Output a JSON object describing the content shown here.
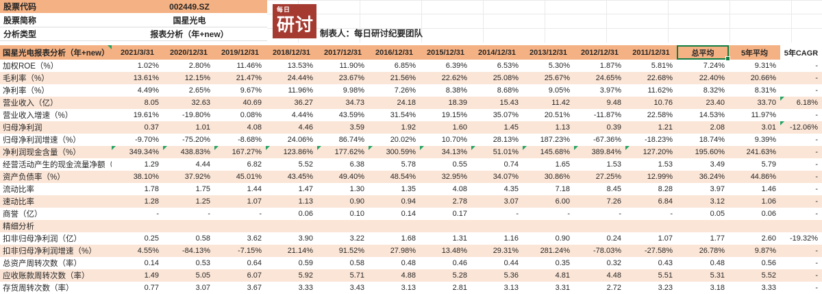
{
  "meta_panel": {
    "rows": [
      {
        "label": "股票代码",
        "value": "002449.SZ"
      },
      {
        "label": "股票简称",
        "value": "国星光电"
      },
      {
        "label": "分析类型",
        "value": "报表分析（年+new）"
      }
    ]
  },
  "logo": {
    "top": "每日",
    "main": "研讨"
  },
  "byline": "制表人：每日研讨纪要团队",
  "table": {
    "title": "国星光电报表分析（年+new）",
    "title_marker": true,
    "columns": [
      "2021/3/31",
      "2020/12/31",
      "2019/12/31",
      "2018/12/31",
      "2017/12/31",
      "2016/12/31",
      "2015/12/31",
      "2014/12/31",
      "2013/12/31",
      "2012/12/31",
      "2011/12/31",
      "总平均",
      "5年平均",
      "5年CAGR"
    ],
    "selected_column": "总平均",
    "plain_columns": [
      "5年CAGR"
    ],
    "rows": [
      {
        "label": "加权ROE（%）",
        "values": [
          "1.02%",
          "2.80%",
          "11.46%",
          "13.53%",
          "11.90%",
          "6.85%",
          "6.39%",
          "6.53%",
          "5.30%",
          "1.87%",
          "5.81%",
          "7.24%",
          "9.31%",
          "-"
        ]
      },
      {
        "label": "毛利率（%）",
        "values": [
          "13.61%",
          "12.15%",
          "21.47%",
          "24.44%",
          "23.67%",
          "21.56%",
          "22.62%",
          "25.08%",
          "25.67%",
          "24.65%",
          "22.68%",
          "22.40%",
          "20.66%",
          "-"
        ]
      },
      {
        "label": "净利率（%）",
        "values": [
          "4.49%",
          "2.65%",
          "9.67%",
          "11.96%",
          "9.98%",
          "7.26%",
          "8.38%",
          "8.68%",
          "9.05%",
          "3.97%",
          "11.62%",
          "8.32%",
          "8.31%",
          "-"
        ]
      },
      {
        "label": "营业收入（亿）",
        "values": [
          "8.05",
          "32.63",
          "40.69",
          "36.27",
          "34.73",
          "24.18",
          "18.39",
          "15.43",
          "11.42",
          "9.48",
          "10.76",
          "23.40",
          "33.70",
          "6.18%"
        ],
        "marker_cols": [
          13
        ]
      },
      {
        "label": "营业收入增速（%）",
        "values": [
          "19.61%",
          "-19.80%",
          "0.08%",
          "4.44%",
          "43.59%",
          "31.54%",
          "19.15%",
          "35.07%",
          "20.51%",
          "-11.87%",
          "22.58%",
          "14.53%",
          "11.97%",
          "-"
        ]
      },
      {
        "label": "归母净利润",
        "values": [
          "0.37",
          "1.01",
          "4.08",
          "4.46",
          "3.59",
          "1.92",
          "1.60",
          "1.45",
          "1.13",
          "0.39",
          "1.21",
          "2.08",
          "3.01",
          "-12.06%"
        ],
        "marker_cols": [
          13
        ]
      },
      {
        "label": "归母净利润增速（%）",
        "values": [
          "-9.70%",
          "-75.20%",
          "-8.68%",
          "24.06%",
          "86.74%",
          "20.02%",
          "10.70%",
          "28.13%",
          "187.23%",
          "-67.36%",
          "-18.23%",
          "18.74%",
          "9.39%",
          "-"
        ]
      },
      {
        "label": "净利润现金含量（%）",
        "values": [
          "349.34%",
          "438.83%",
          "167.27%",
          "123.86%",
          "177.62%",
          "300.59%",
          "34.13%",
          "51.01%",
          "145.68%",
          "389.84%",
          "127.20%",
          "195.60%",
          "241.63%",
          "-"
        ],
        "marker_cols": [
          0,
          1,
          2,
          3,
          4,
          5,
          6,
          7,
          8,
          9,
          10
        ]
      },
      {
        "label": "经营活动产生的现金流量净额（亿）",
        "values": [
          "1.29",
          "4.44",
          "6.82",
          "5.52",
          "6.38",
          "5.78",
          "0.55",
          "0.74",
          "1.65",
          "1.53",
          "1.53",
          "3.49",
          "5.79",
          "-"
        ]
      },
      {
        "label": "资产负债率（%）",
        "values": [
          "38.10%",
          "37.92%",
          "45.01%",
          "43.45%",
          "49.40%",
          "48.54%",
          "32.95%",
          "34.07%",
          "30.86%",
          "27.25%",
          "12.99%",
          "36.24%",
          "44.86%",
          "-"
        ]
      },
      {
        "label": "流动比率",
        "values": [
          "1.78",
          "1.75",
          "1.44",
          "1.47",
          "1.30",
          "1.35",
          "4.08",
          "4.35",
          "7.18",
          "8.45",
          "8.28",
          "3.97",
          "1.46",
          "-"
        ]
      },
      {
        "label": "速动比率",
        "values": [
          "1.28",
          "1.25",
          "1.07",
          "1.13",
          "0.90",
          "0.94",
          "2.78",
          "3.07",
          "6.00",
          "7.26",
          "6.84",
          "3.12",
          "1.06",
          "-"
        ]
      },
      {
        "label": "商誉（亿）",
        "values": [
          "-",
          "-",
          "-",
          "0.06",
          "0.10",
          "0.14",
          "0.17",
          "-",
          "-",
          "-",
          "-",
          "0.05",
          "0.06",
          "-"
        ]
      },
      {
        "label": "精细分析",
        "values": [
          "",
          "",
          "",
          "",
          "",
          "",
          "",
          "",
          "",
          "",
          "",
          "",
          "",
          ""
        ],
        "section": true
      },
      {
        "label": "扣非归母净利润（亿）",
        "values": [
          "0.25",
          "0.58",
          "3.62",
          "3.90",
          "3.22",
          "1.68",
          "1.31",
          "1.16",
          "0.90",
          "0.24",
          "1.07",
          "1.77",
          "2.60",
          "-19.32%"
        ]
      },
      {
        "label": "扣非归母净利润增速（%）",
        "values": [
          "4.55%",
          "-84.13%",
          "-7.15%",
          "21.14%",
          "91.52%",
          "27.98%",
          "13.48%",
          "29.31%",
          "281.24%",
          "-78.03%",
          "-27.58%",
          "26.78%",
          "9.87%",
          "-"
        ]
      },
      {
        "label": "总资产周转次数（率）",
        "values": [
          "0.14",
          "0.53",
          "0.64",
          "0.59",
          "0.58",
          "0.48",
          "0.46",
          "0.44",
          "0.35",
          "0.32",
          "0.43",
          "0.48",
          "0.56",
          "-"
        ]
      },
      {
        "label": "应收账款周转次数（率）",
        "values": [
          "1.49",
          "5.05",
          "6.07",
          "5.92",
          "5.71",
          "4.88",
          "5.28",
          "5.36",
          "4.81",
          "4.48",
          "5.51",
          "5.31",
          "5.52",
          "-"
        ]
      },
      {
        "label": "存货周转次数（率）",
        "values": [
          "0.77",
          "3.07",
          "3.67",
          "3.33",
          "3.43",
          "3.13",
          "2.81",
          "3.13",
          "3.31",
          "2.72",
          "3.23",
          "3.18",
          "3.33",
          "-"
        ]
      }
    ]
  },
  "colors": {
    "header_fill": "#F4B183",
    "alt_row_fill": "#FBE5D6",
    "logo_red": "#A53A31",
    "marker_green": "#21A366",
    "selection_green": "#107C41"
  }
}
